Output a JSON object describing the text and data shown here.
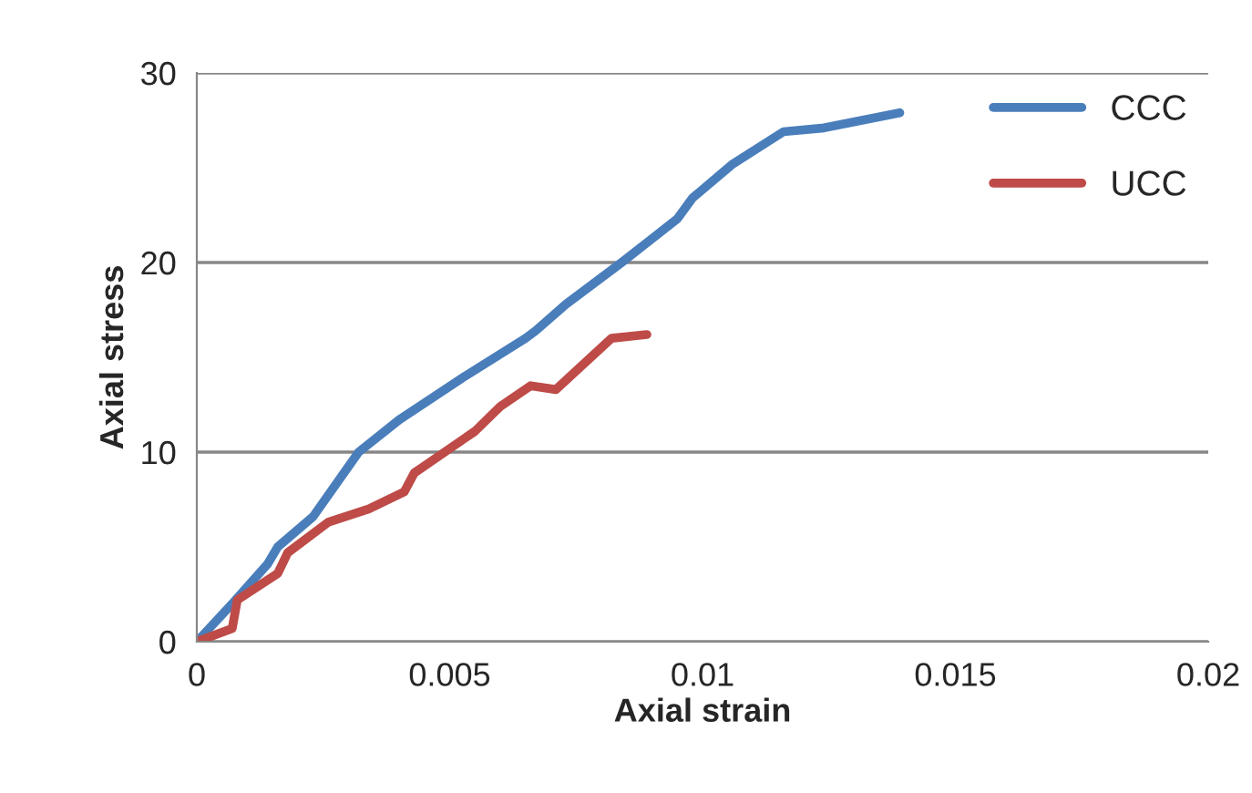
{
  "chart_data": {
    "type": "line",
    "xlabel": "Axial strain",
    "ylabel": "Axial stress",
    "xlim": [
      0,
      0.02
    ],
    "xticks": [
      0,
      0.005,
      0.01,
      0.015,
      0.02
    ],
    "ylim": [
      0,
      30
    ],
    "yticks": [
      0,
      10,
      20,
      30
    ],
    "grid": "y",
    "legend": "top right",
    "marker": "none",
    "line_style": "solid",
    "series": [
      {
        "name": "CCC",
        "color": "#4a7ebb",
        "x": [
          0,
          0.0007,
          0.0014,
          0.0016,
          0.0023,
          0.0032,
          0.004,
          0.0053,
          0.0065,
          0.0067,
          0.0073,
          0.0084,
          0.0095,
          0.0098,
          0.0106,
          0.0116,
          0.0124,
          0.0139
        ],
        "values": [
          0,
          2.0,
          4.1,
          5.0,
          6.6,
          10.0,
          11.7,
          14.0,
          16.0,
          16.4,
          17.8,
          20.0,
          22.3,
          23.4,
          25.2,
          26.9,
          27.1,
          27.9
        ]
      },
      {
        "name": "UCC",
        "color": "#be4b48",
        "x": [
          0,
          0.0007,
          0.0008,
          0.0016,
          0.0018,
          0.0026,
          0.0034,
          0.0041,
          0.0043,
          0.0055,
          0.006,
          0.0066,
          0.0071,
          0.0082,
          0.0089
        ],
        "values": [
          0,
          0.7,
          2.2,
          3.6,
          4.7,
          6.3,
          7.0,
          7.9,
          8.9,
          11.1,
          12.4,
          13.5,
          13.3,
          16.0,
          16.2
        ]
      }
    ]
  }
}
